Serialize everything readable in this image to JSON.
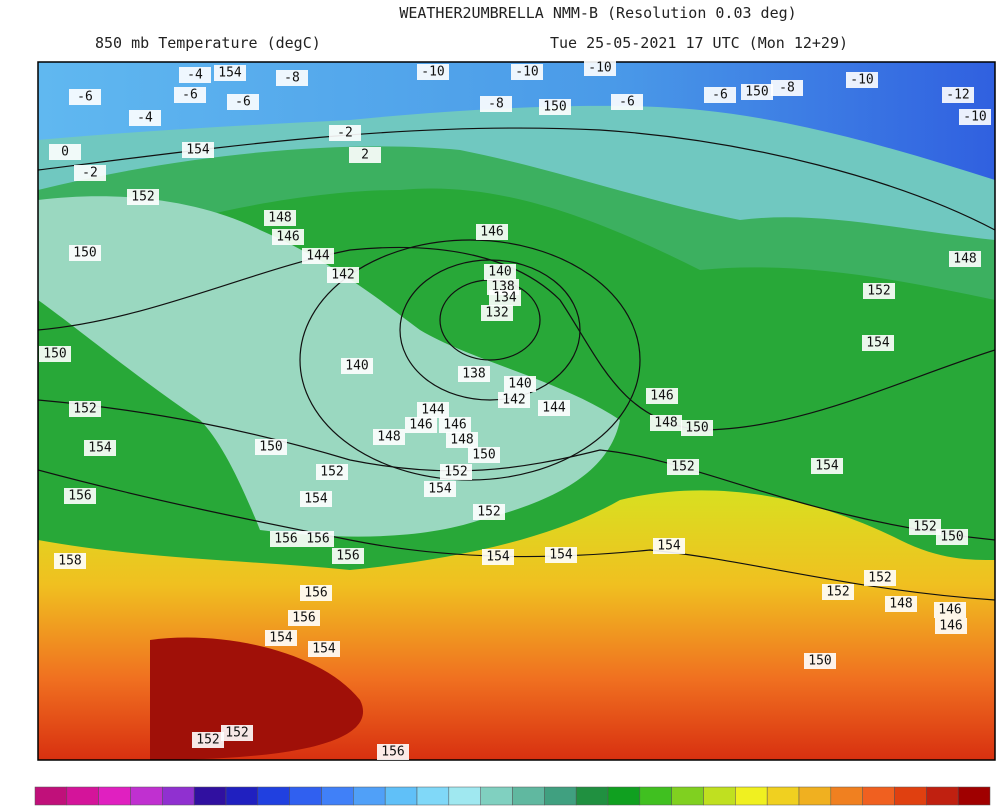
{
  "header": {
    "title": "WEATHER2UMBRELLA NMM-B (Resolution 0.03 deg)",
    "field": "850 mb Temperature (degC)",
    "valid": "Tue 25-05-2021 17 UTC (Mon 12+29)"
  },
  "map": {
    "labels": [
      "154",
      "-4",
      "-8",
      "-10",
      "-10",
      "-10",
      "-10",
      "-6",
      "-6",
      "-6",
      "-4",
      "-8",
      "150",
      "-6",
      "-6",
      "150",
      "-8",
      "-12",
      "-10",
      "154",
      "-2",
      "2",
      "0",
      "-2",
      "152",
      "148",
      "146",
      "144",
      "142",
      "150",
      "146",
      "140",
      "138",
      "134",
      "132",
      "150",
      "152",
      "154",
      "156",
      "158",
      "140",
      "138",
      "140",
      "142",
      "144",
      "144",
      "146",
      "146",
      "148",
      "148",
      "150",
      "150",
      "152",
      "152",
      "154",
      "154",
      "152",
      "146",
      "148",
      "150",
      "152",
      "154",
      "154",
      "152",
      "148",
      "156",
      "156",
      "156",
      "154",
      "154",
      "154",
      "152",
      "150",
      "152",
      "152",
      "148",
      "146",
      "146",
      "150",
      "156",
      "156",
      "154",
      "154",
      "152",
      "152",
      "156"
    ]
  }
}
